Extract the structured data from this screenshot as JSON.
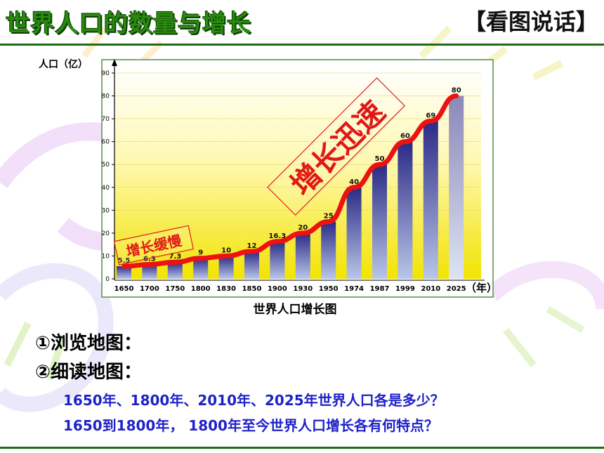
{
  "header": {
    "title": "世界人口的数量与增长",
    "badge": "【看图说话】"
  },
  "chart_data": {
    "type": "bar",
    "title": "世界人口增长图",
    "ylabel": "人口（亿）",
    "xlabel": "（年）",
    "ylim": [
      0,
      90
    ],
    "yticks": [
      0,
      10,
      20,
      30,
      40,
      50,
      60,
      70,
      80,
      90
    ],
    "categories": [
      "1650",
      "1700",
      "1750",
      "1800",
      "1830",
      "1850",
      "1900",
      "1930",
      "1950",
      "1974",
      "1987",
      "1999",
      "2010",
      "2025"
    ],
    "values": [
      5.5,
      6.3,
      7.3,
      9,
      10,
      12,
      16.3,
      20,
      25,
      40,
      50,
      60,
      69,
      80
    ],
    "value_labels": [
      "5.5",
      "6.3",
      "7.3",
      "9",
      "10",
      "12",
      "16.3",
      "20",
      "25",
      "40",
      "50",
      "60",
      "69",
      "80"
    ],
    "annotations": [
      "增长缓慢",
      "增长迅速"
    ],
    "colors": {
      "bar_dark": "#2b2a86",
      "bar_light": "#b9c6e8",
      "trend_line": "#ee1111",
      "bg_top": "#ffffff",
      "bg_bottom": "#f6e800"
    }
  },
  "questions": {
    "q1": "①浏览地图：",
    "q2": "②细读地图：",
    "q3": "1650年、1800年、2010年、2025年世界人口各是多少？",
    "q4": "1650到1800年， 1800年至今世界人口增长各有何特点？"
  }
}
